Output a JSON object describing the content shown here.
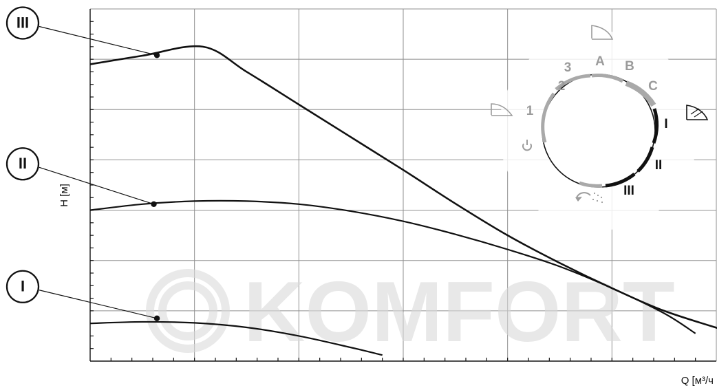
{
  "chart_data": {
    "type": "line",
    "xlabel": "Q [м³/ч",
    "ylabel": "H [м]",
    "grid": true,
    "x_range": [
      0,
      6
    ],
    "y_range": [
      0,
      7
    ],
    "series": [
      {
        "name": "I",
        "x": [
          0.0,
          0.5,
          1.0,
          1.5,
          2.0,
          2.5,
          2.8
        ],
        "y": [
          0.75,
          0.78,
          0.76,
          0.67,
          0.5,
          0.27,
          0.12
        ]
      },
      {
        "name": "II",
        "x": [
          0.0,
          0.5,
          1.0,
          1.5,
          2.0,
          2.5,
          3.0,
          3.5,
          4.0,
          4.5,
          5.0,
          5.5,
          5.8
        ],
        "y": [
          3.0,
          3.12,
          3.18,
          3.18,
          3.12,
          2.98,
          2.78,
          2.52,
          2.22,
          1.88,
          1.45,
          0.95,
          0.55
        ]
      },
      {
        "name": "III",
        "x": [
          0.0,
          0.5,
          1.08,
          1.5,
          2.0,
          2.5,
          3.0,
          3.5,
          4.0,
          4.5,
          5.0,
          5.5,
          6.1
        ],
        "y": [
          5.9,
          6.07,
          6.25,
          5.75,
          5.1,
          4.45,
          3.8,
          3.13,
          2.5,
          1.95,
          1.45,
          1.0,
          0.6
        ]
      }
    ],
    "annotations": [
      {
        "label": "III",
        "x": 0.64,
        "y": 6.08
      },
      {
        "label": "II",
        "x": 0.61,
        "y": 3.12
      },
      {
        "label": "I",
        "x": 0.64,
        "y": 0.85
      }
    ]
  },
  "dial": {
    "labels": [
      "2",
      "3",
      "A",
      "B",
      "C",
      "1",
      "I",
      "II",
      "III"
    ]
  },
  "watermark": "KOMFORT",
  "colors": {
    "curve": "#111111",
    "grid": "#8f8f8f",
    "dial_gray": "#9b9b9b",
    "dial_black": "#111111",
    "watermark": "#d9d9d9"
  }
}
